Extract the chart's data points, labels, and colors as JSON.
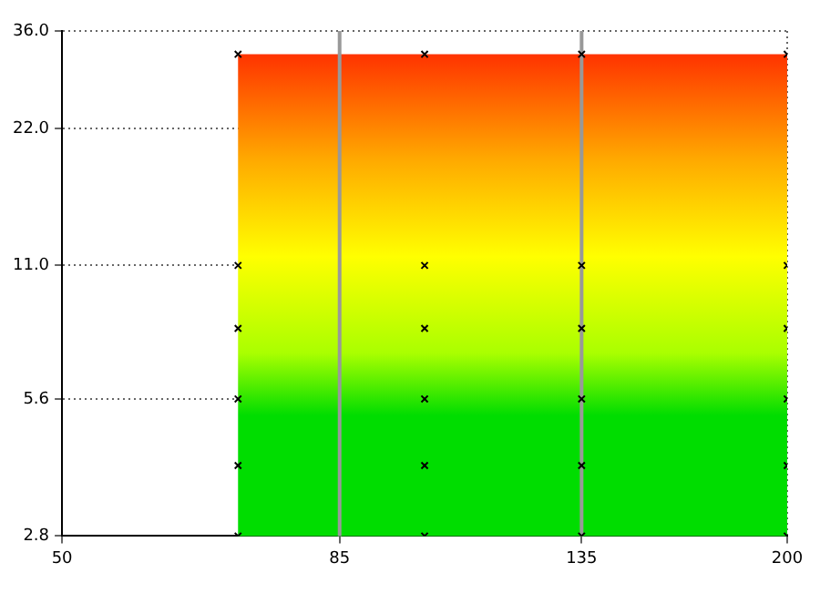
{
  "chart_data": {
    "type": "scatter",
    "log": "xy",
    "grid": true,
    "marker": "cross",
    "legend": false,
    "xlim": [
      50,
      200
    ],
    "xticks": [
      50,
      85,
      135,
      200
    ],
    "ylim": [
      2.8,
      36
    ],
    "yticks": [
      2.8,
      5.6,
      {
        "value": 11,
        "label": "11.0"
      },
      {
        "value": 22,
        "label": "22.0"
      },
      {
        "value": 36,
        "label": "36.0"
      }
    ],
    "bands": [
      {
        "axis": "x",
        "from": 70,
        "to": 200,
        "color": "#00dd00"
      }
    ],
    "ref_lines": [
      {
        "axis": "x",
        "value": 85,
        "color": "#999999"
      },
      {
        "axis": "x",
        "value": 135,
        "color": "#999999"
      }
    ],
    "series": [
      {
        "color": "#000000",
        "x": [
          70,
          70,
          70,
          70,
          70,
          70,
          100,
          100,
          100,
          100,
          100,
          100,
          135,
          135,
          135,
          135,
          135,
          135,
          200,
          200,
          200,
          200,
          200,
          200
        ],
        "values": [
          2.8,
          4,
          5.6,
          8,
          11,
          32,
          2.8,
          4,
          5.6,
          8,
          11,
          32,
          2.8,
          4,
          5.6,
          8,
          11,
          32,
          2.8,
          4,
          5.6,
          8,
          11,
          32
        ]
      }
    ]
  }
}
